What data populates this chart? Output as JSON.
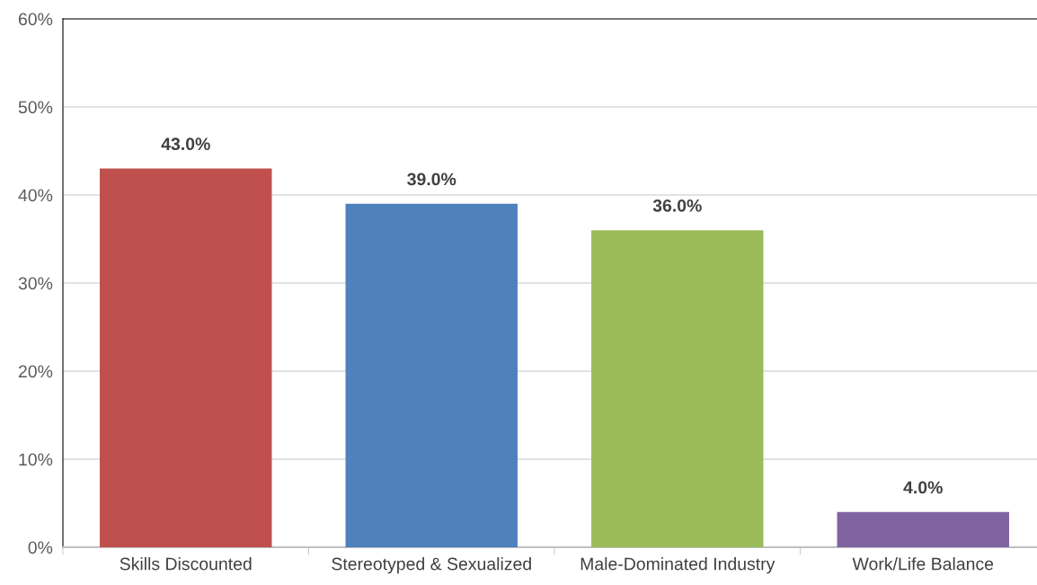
{
  "chart_data": {
    "type": "bar",
    "categories": [
      "Skills Discounted",
      "Stereotyped & Sexualized",
      "Male-Dominated Industry",
      "Work/Life Balance"
    ],
    "values": [
      43.0,
      39.0,
      36.0,
      4.0
    ],
    "colors": [
      "#c0504d",
      "#4f81bd",
      "#9bbb59",
      "#8064a2"
    ],
    "value_labels": [
      "43.0%",
      "39.0%",
      "36.0%",
      "4.0%"
    ],
    "ylim": [
      0,
      60
    ],
    "yticks": [
      {
        "value": 0,
        "label": "0%"
      },
      {
        "value": 10,
        "label": "10%"
      },
      {
        "value": 20,
        "label": "20%"
      },
      {
        "value": 30,
        "label": "30%"
      },
      {
        "value": 40,
        "label": "40%"
      },
      {
        "value": 50,
        "label": "50%"
      },
      {
        "value": 60,
        "label": "60%"
      }
    ],
    "grid": "y",
    "legend": false
  }
}
